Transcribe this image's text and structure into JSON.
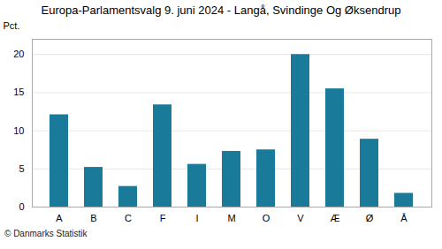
{
  "chart_data": {
    "type": "bar",
    "title": "Europa-Parlamentsvalg 9. juni 2024 - Langå, Svindinge Og Øksendrup",
    "categories": [
      "A",
      "B",
      "C",
      "F",
      "I",
      "M",
      "O",
      "V",
      "Æ",
      "Ø",
      "Å"
    ],
    "values": [
      12.1,
      5.2,
      2.7,
      13.4,
      5.6,
      7.3,
      7.5,
      20.0,
      15.5,
      8.9,
      1.8
    ],
    "color": "#1a7a9a",
    "ylabel": "Pct.",
    "footer": "© Danmarks Statistik",
    "ylim": [
      0,
      22
    ],
    "yticks": [
      0,
      5,
      10,
      15,
      20
    ],
    "grid": true
  }
}
